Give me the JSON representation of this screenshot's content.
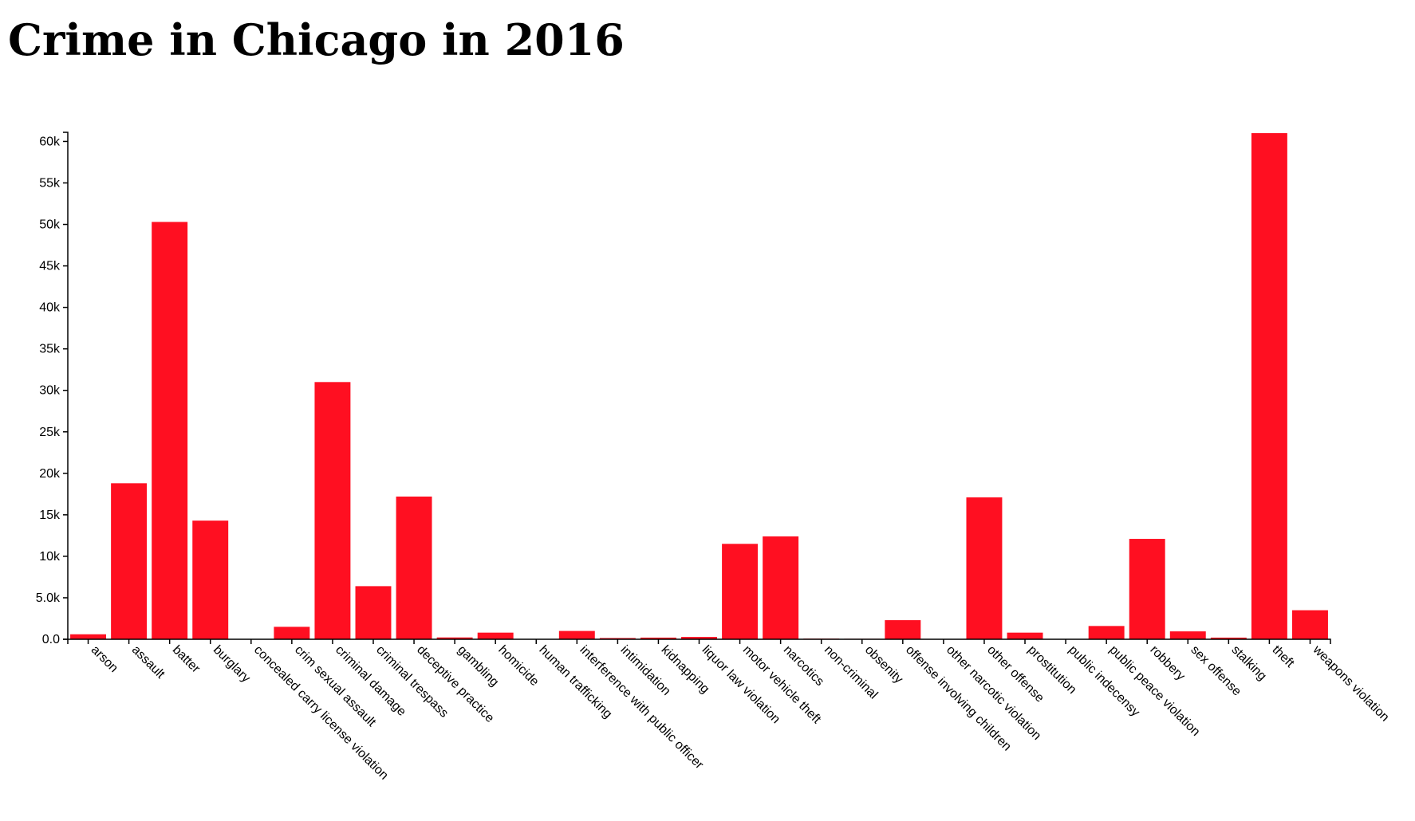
{
  "page": {
    "title": "Crime in Chicago in 2016"
  },
  "chart_data": {
    "type": "bar",
    "title": "Crime in Chicago in 2016",
    "xlabel": "",
    "ylabel": "",
    "ylim": [
      0,
      61100
    ],
    "y_ticks": [
      0,
      5000,
      10000,
      15000,
      20000,
      25000,
      30000,
      35000,
      40000,
      45000,
      50000,
      55000,
      60000
    ],
    "y_tick_labels": [
      "0.0",
      "5.0k",
      "10k",
      "15k",
      "20k",
      "25k",
      "30k",
      "35k",
      "40k",
      "45k",
      "50k",
      "55k",
      "60k"
    ],
    "bar_color": "#ff0f21",
    "grid": false,
    "legend": "none",
    "categories": [
      "arson",
      "assault",
      "batter",
      "burglary",
      "concealed carry license violation",
      "crim sexual assault",
      "criminal damage",
      "criminal trespass",
      "deceptive practice",
      "gambling",
      "homicide",
      "human trafficking",
      "interference with public officer",
      "intimidation",
      "kidnapping",
      "liquor law violation",
      "motor vehicle theft",
      "narcotics",
      "non-criminal",
      "obsenity",
      "offense involving children",
      "other narcotic violation",
      "other offense",
      "prostitution",
      "public indecensy",
      "public peace violation",
      "robbery",
      "sex offense",
      "stalking",
      "theft",
      "weapons violation"
    ],
    "values": [
      600,
      18800,
      50300,
      14300,
      30,
      1500,
      31000,
      6400,
      17200,
      220,
      800,
      15,
      1000,
      150,
      200,
      280,
      11500,
      12400,
      80,
      60,
      2300,
      10,
      17100,
      800,
      20,
      1600,
      12100,
      950,
      200,
      61000,
      3500
    ]
  }
}
